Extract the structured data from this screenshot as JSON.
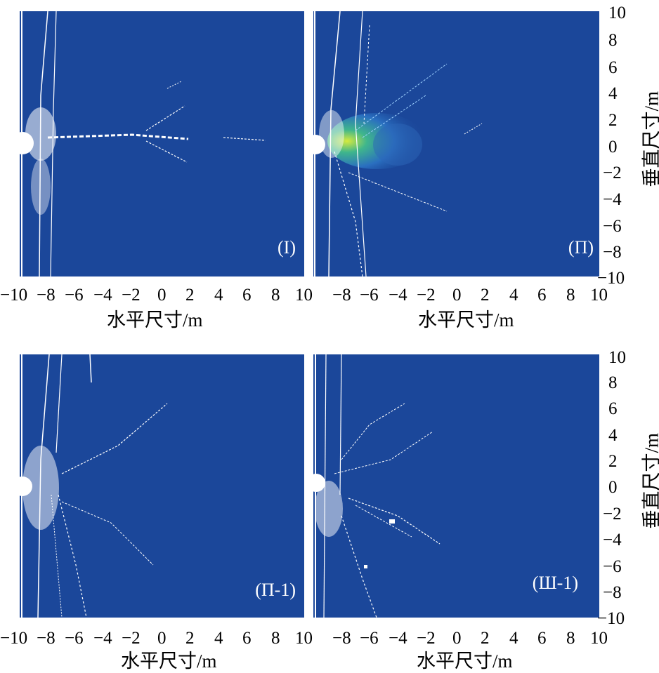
{
  "colors": {
    "field": "#1b479a",
    "crack": "#ffffff",
    "stress_hot": "#c9e84a"
  },
  "panels": [
    {
      "id": "p1",
      "label": "(I)"
    },
    {
      "id": "p2",
      "label": "(Π)"
    },
    {
      "id": "p3",
      "label": "(Π-1)"
    },
    {
      "id": "p4",
      "label": "(Ш-1)"
    }
  ],
  "x_ticks_full": [
    "−10",
    "−8",
    "−6",
    "−4",
    "−2",
    "0",
    "2",
    "4",
    "6",
    "8",
    "10"
  ],
  "x_ticks_right": [
    "−8",
    "−6",
    "−4",
    "−2",
    "0",
    "2",
    "4",
    "6",
    "8",
    "10"
  ],
  "y_ticks": [
    "10",
    "8",
    "6",
    "4",
    "2",
    "0",
    "−2",
    "−4",
    "−6",
    "−8",
    "−10"
  ],
  "xlabel": "水平尺寸/m",
  "ylabel": "垂直尺寸/m",
  "chart_data": [
    {
      "type": "heatmap",
      "panel": "(I)",
      "xlim": [
        -10,
        10
      ],
      "ylim": [
        -10,
        10
      ],
      "xlabel": "水平尺寸/m",
      "ylabel": ""
    },
    {
      "type": "heatmap",
      "panel": "(Π)",
      "xlim": [
        -10,
        10
      ],
      "ylim": [
        -10,
        10
      ],
      "xlabel": "水平尺寸/m",
      "ylabel": "垂直尺寸/m"
    },
    {
      "type": "heatmap",
      "panel": "(Π-1)",
      "xlim": [
        -10,
        10
      ],
      "ylim": [
        -10,
        10
      ],
      "xlabel": "水平尺寸/m",
      "ylabel": ""
    },
    {
      "type": "heatmap",
      "panel": "(Ш-1)",
      "xlim": [
        -10,
        10
      ],
      "ylim": [
        -10,
        10
      ],
      "xlabel": "水平尺寸/m",
      "ylabel": "垂直尺寸/m"
    }
  ]
}
